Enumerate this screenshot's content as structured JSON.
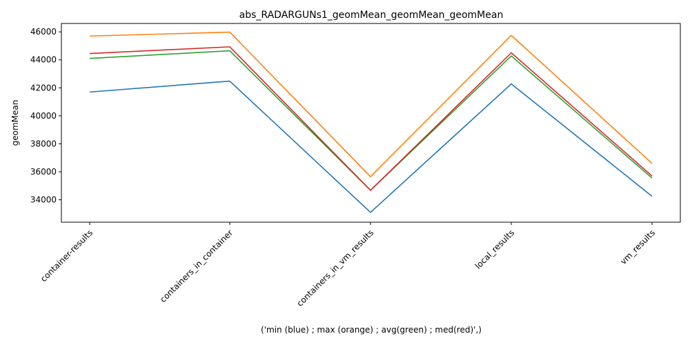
{
  "chart_data": {
    "type": "line",
    "title": "abs_RADARGUNs1_geomMean_geomMean_geomMean",
    "xlabel": "('min (blue) ; max (orange) ; avg(green) ; med(red)',)",
    "ylabel": "geomMean",
    "categories": [
      "container-results",
      "containers_in_container",
      "containers_in_vm_results",
      "local_results",
      "vm_results"
    ],
    "ylim": [
      32400,
      46600
    ],
    "yticks": [
      34000,
      36000,
      38000,
      40000,
      42000,
      44000,
      46000
    ],
    "grid": false,
    "series": [
      {
        "color": "#1f77b4",
        "values": [
          41700,
          42480,
          33100,
          42280,
          34250
        ]
      },
      {
        "color": "#ff7f0e",
        "values": [
          45700,
          45980,
          35650,
          45750,
          36600
        ]
      },
      {
        "color": "#2ca02c",
        "values": [
          44100,
          44650,
          34680,
          44280,
          35550
        ]
      },
      {
        "color": "#d62728",
        "values": [
          44450,
          44930,
          34680,
          44500,
          35700
        ]
      }
    ]
  }
}
